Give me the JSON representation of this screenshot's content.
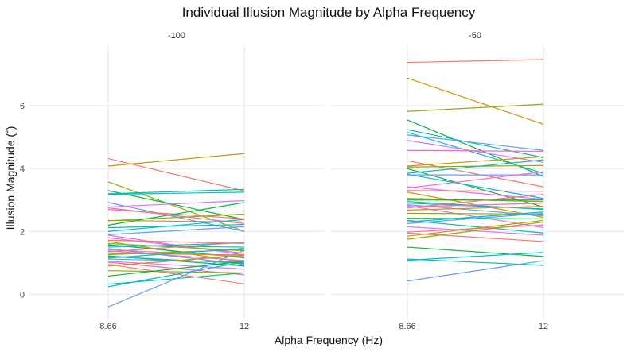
{
  "chart_data": {
    "type": "line",
    "title": "Individual Illusion Magnitude by Alpha Frequency",
    "xlabel": "Alpha Frequency (Hz)",
    "ylabel": "Illusion Magnitude (˚)",
    "x_categories": [
      "8.66",
      "12"
    ],
    "ylim": [
      -0.75,
      7.9
    ],
    "y_ticks": [
      0,
      2,
      4,
      6
    ],
    "grid": true,
    "legend": "none",
    "line_colors": [
      "#F8766D",
      "#D39200",
      "#93AA00",
      "#00BA38",
      "#00C19F",
      "#00B9E3",
      "#619CFF",
      "#DB72FB",
      "#FF61C3"
    ],
    "facets": [
      {
        "label": "-100",
        "lines": [
          [
            4.32,
            3.29
          ],
          [
            4.08,
            4.48
          ],
          [
            3.58,
            2.0
          ],
          [
            3.3,
            2.38
          ],
          [
            3.2,
            3.34
          ],
          [
            3.18,
            3.25
          ],
          [
            2.92,
            2.0
          ],
          [
            2.78,
            2.98
          ],
          [
            2.75,
            2.25
          ],
          [
            2.7,
            2.4
          ],
          [
            2.35,
            2.3
          ],
          [
            2.34,
            2.55
          ],
          [
            2.2,
            2.92
          ],
          [
            2.12,
            2.22
          ],
          [
            2.0,
            2.38
          ],
          [
            1.9,
            2.15
          ],
          [
            1.88,
            1.25
          ],
          [
            1.8,
            1.3
          ],
          [
            1.72,
            1.62
          ],
          [
            1.68,
            1.02
          ],
          [
            1.62,
            1.38
          ],
          [
            1.58,
            1.16
          ],
          [
            1.55,
            1.5
          ],
          [
            1.5,
            1.64
          ],
          [
            1.45,
            0.95
          ],
          [
            1.42,
            1.2
          ],
          [
            1.38,
            1.07
          ],
          [
            1.35,
            1.66
          ],
          [
            1.3,
            1.25
          ],
          [
            1.26,
            1.42
          ],
          [
            1.22,
            0.9
          ],
          [
            1.2,
            0.98
          ],
          [
            1.15,
            1.46
          ],
          [
            1.12,
            1.02
          ],
          [
            1.05,
            0.8
          ],
          [
            1.02,
            0.62
          ],
          [
            0.95,
            0.33
          ],
          [
            0.9,
            1.24
          ],
          [
            0.75,
            0.68
          ],
          [
            0.58,
            1.05
          ],
          [
            0.32,
            0.68
          ],
          [
            0.24,
            1.03
          ],
          [
            -0.4,
            1.4
          ]
        ]
      },
      {
        "label": "-50",
        "lines": [
          [
            7.38,
            7.47
          ],
          [
            6.88,
            5.41
          ],
          [
            5.82,
            6.05
          ],
          [
            5.55,
            3.75
          ],
          [
            5.24,
            4.35
          ],
          [
            5.15,
            3.85
          ],
          [
            5.07,
            4.58
          ],
          [
            4.9,
            4.2
          ],
          [
            4.58,
            4.55
          ],
          [
            4.25,
            3.42
          ],
          [
            4.08,
            4.38
          ],
          [
            4.05,
            4.1
          ],
          [
            4.0,
            2.78
          ],
          [
            3.85,
            4.28
          ],
          [
            3.82,
            3.05
          ],
          [
            3.8,
            3.8
          ],
          [
            3.42,
            3.02
          ],
          [
            3.38,
            3.9
          ],
          [
            3.3,
            3.28
          ],
          [
            3.25,
            2.45
          ],
          [
            3.05,
            2.95
          ],
          [
            3.0,
            3.0
          ],
          [
            2.95,
            2.7
          ],
          [
            2.9,
            2.72
          ],
          [
            2.85,
            2.5
          ],
          [
            2.82,
            2.12
          ],
          [
            2.78,
            2.9
          ],
          [
            2.75,
            3.18
          ],
          [
            2.68,
            2.8
          ],
          [
            2.58,
            2.55
          ],
          [
            2.42,
            2.4
          ],
          [
            2.35,
            1.95
          ],
          [
            2.3,
            2.62
          ],
          [
            2.25,
            2.58
          ],
          [
            2.15,
            1.88
          ],
          [
            1.98,
            2.2
          ],
          [
            1.95,
            1.68
          ],
          [
            1.85,
            2.35
          ],
          [
            1.75,
            2.3
          ],
          [
            1.5,
            1.2
          ],
          [
            1.12,
            0.92
          ],
          [
            1.08,
            1.33
          ],
          [
            0.42,
            1.07
          ]
        ]
      }
    ]
  }
}
